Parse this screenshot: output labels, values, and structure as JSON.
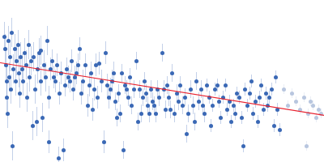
{
  "chart_data": {
    "type": "scatter",
    "tick_labels": false,
    "grid": false,
    "xlim": [
      0,
      400
    ],
    "ylim": [
      0,
      200
    ],
    "series": [
      {
        "color": "#3a68b5",
        "marker": "circle",
        "x": [
          5,
          6,
          7,
          8,
          8,
          9,
          10,
          11,
          12,
          13,
          14,
          15,
          16,
          18,
          19,
          20,
          22,
          23,
          24,
          25,
          27,
          28,
          30,
          32,
          33,
          35,
          36,
          38,
          40,
          41,
          43,
          45,
          46,
          48,
          50,
          50,
          52,
          54,
          56,
          58,
          60,
          60,
          62,
          64,
          66,
          68,
          70,
          72,
          73,
          75,
          78,
          80,
          82,
          84,
          86,
          88,
          90,
          92,
          94,
          96,
          98,
          100,
          102,
          105,
          108,
          110,
          112,
          114,
          116,
          118,
          120,
          122,
          125,
          128,
          130,
          132,
          134,
          136,
          138,
          140,
          142,
          144,
          146,
          148,
          150,
          152,
          154,
          156,
          158,
          160,
          162,
          165,
          168,
          170,
          172,
          174,
          176,
          178,
          180,
          182,
          184,
          186,
          188,
          190,
          192,
          194,
          196,
          200,
          202,
          204,
          206,
          208,
          210,
          212,
          215,
          218,
          220,
          222,
          225,
          228,
          230,
          232,
          235,
          238,
          240,
          242,
          245,
          248,
          250,
          252,
          255,
          258,
          260,
          262,
          265,
          268,
          270,
          272,
          275,
          278,
          280,
          283,
          285,
          288,
          290,
          292,
          295,
          298,
          300,
          302,
          305,
          308,
          310,
          312,
          315,
          318,
          320,
          322,
          325,
          328,
          330,
          332,
          335,
          338,
          340,
          342,
          345
        ],
        "values": [
          155,
          140,
          120,
          100,
          80,
          60,
          150,
          105,
          130,
          90,
          160,
          20,
          115,
          140,
          100,
          125,
          145,
          110,
          85,
          130,
          115,
          100,
          135,
          120,
          80,
          145,
          105,
          125,
          45,
          130,
          90,
          50,
          115,
          135,
          138,
          100,
          55,
          120,
          105,
          150,
          25,
          80,
          115,
          125,
          105,
          100,
          120,
          5,
          85,
          110,
          15,
          95,
          115,
          105,
          100,
          125,
          90,
          105,
          110,
          120,
          140,
          85,
          100,
          120,
          70,
          95,
          110,
          65,
          90,
          120,
          80,
          122,
          100,
          25,
          135,
          95,
          80,
          90,
          100,
          110,
          75,
          55,
          85,
          60,
          110,
          15,
          95,
          90,
          80,
          105,
          70,
          90,
          125,
          50,
          90,
          60,
          80,
          100,
          85,
          70,
          60,
          90,
          75,
          70,
          60,
          90,
          80,
          135,
          90,
          65,
          95,
          80,
          65,
          110,
          60,
          85,
          75,
          95,
          70,
          80,
          35,
          60,
          90,
          70,
          50,
          100,
          75,
          90,
          70,
          60,
          95,
          80,
          45,
          70,
          90,
          95,
          75,
          55,
          80,
          95,
          65,
          75,
          50,
          70,
          60,
          85,
          80,
          55,
          20,
          90,
          70,
          85,
          100,
          60,
          75,
          50,
          80,
          95,
          65,
          85,
          70,
          80,
          90,
          45,
          105,
          65,
          40
        ],
        "errors": [
          18,
          18,
          18,
          18,
          18,
          18,
          18,
          18,
          18,
          18,
          18,
          18,
          18,
          18,
          18,
          18,
          18,
          18,
          18,
          18,
          18,
          18,
          18,
          18,
          18,
          18,
          18,
          18,
          18,
          18,
          18,
          18,
          18,
          18,
          18,
          18,
          18,
          18,
          18,
          18,
          14,
          14,
          14,
          14,
          14,
          14,
          14,
          14,
          14,
          14,
          14,
          14,
          14,
          14,
          14,
          14,
          14,
          14,
          14,
          14,
          14,
          14,
          14,
          14,
          14,
          14,
          14,
          14,
          14,
          14,
          14,
          14,
          14,
          14,
          14,
          14,
          14,
          14,
          14,
          14,
          11,
          11,
          11,
          11,
          11,
          11,
          11,
          11,
          11,
          11,
          11,
          11,
          11,
          11,
          11,
          11,
          11,
          11,
          11,
          11,
          11,
          11,
          11,
          11,
          11,
          11,
          11,
          11,
          11,
          11,
          11,
          11,
          11,
          11,
          11,
          11,
          11,
          11,
          11,
          11,
          11,
          11,
          11,
          11,
          11,
          11,
          11,
          11,
          11,
          11,
          8,
          8,
          8,
          8,
          8,
          8,
          8,
          8,
          8,
          8,
          8,
          8,
          8,
          8,
          8,
          8,
          8,
          8,
          8,
          8,
          8,
          8,
          8,
          8,
          8,
          8,
          8,
          8,
          8,
          8,
          8,
          8,
          8,
          8,
          8,
          8,
          8
        ]
      },
      {
        "color": "#b8c6df",
        "marker": "circle",
        "x": [
          350,
          355,
          360,
          365,
          370,
          375,
          378,
          380,
          383,
          386,
          390,
          393,
          396
        ],
        "values": [
          90,
          70,
          85,
          75,
          65,
          80,
          20,
          60,
          75,
          70,
          55,
          65,
          60
        ],
        "errors": [
          6,
          6,
          6,
          6,
          6,
          6,
          6,
          6,
          6,
          6,
          6,
          6,
          6
        ]
      },
      {
        "type": "line",
        "color": "#e8212e",
        "line_style": "solid",
        "x": [
          0,
          400
        ],
        "values": [
          123,
          58
        ]
      }
    ]
  }
}
